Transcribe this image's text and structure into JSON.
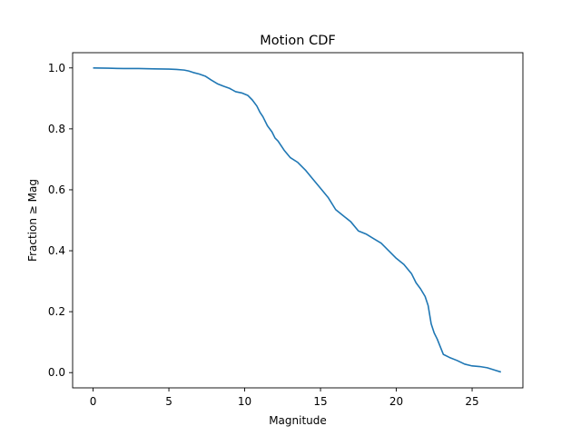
{
  "chart_data": {
    "type": "line",
    "title": "Motion CDF",
    "xlabel": "Magnitude",
    "ylabel": "Fraction ≥ Mag",
    "xlim": [
      -1.35,
      28.35
    ],
    "ylim": [
      -0.05,
      1.05
    ],
    "xticks": [
      0,
      5,
      10,
      15,
      20,
      25
    ],
    "yticks": [
      0.0,
      0.2,
      0.4,
      0.6,
      0.8,
      1.0
    ],
    "xtick_labels": [
      "0",
      "5",
      "10",
      "15",
      "20",
      "25"
    ],
    "ytick_labels": [
      "0.0",
      "0.2",
      "0.4",
      "0.6",
      "0.8",
      "1.0"
    ],
    "grid": false,
    "legend": "none",
    "series": [
      {
        "color": "#1f77b4",
        "x": [
          0,
          1,
          2,
          3,
          4,
          5,
          5.5,
          6,
          6.3,
          6.6,
          7.0,
          7.4,
          7.8,
          8.2,
          8.6,
          9.0,
          9.4,
          9.8,
          10.2,
          10.5,
          10.8,
          11.0,
          11.2,
          11.5,
          11.8,
          12.0,
          12.2,
          12.6,
          13.0,
          13.5,
          14.0,
          14.5,
          15.0,
          15.5,
          16.0,
          16.5,
          17.0,
          17.5,
          18.0,
          18.5,
          19.0,
          19.5,
          20.0,
          20.5,
          21.0,
          21.3,
          21.6,
          21.9,
          22.1,
          22.3,
          22.5,
          22.7,
          22.9,
          23.1,
          23.5,
          24.0,
          24.5,
          25.0,
          25.5,
          26.0,
          26.5,
          26.9
        ],
        "y": [
          1.0,
          0.999,
          0.998,
          0.998,
          0.997,
          0.996,
          0.995,
          0.993,
          0.99,
          0.985,
          0.98,
          0.973,
          0.96,
          0.948,
          0.94,
          0.933,
          0.922,
          0.918,
          0.91,
          0.895,
          0.875,
          0.855,
          0.84,
          0.81,
          0.79,
          0.77,
          0.76,
          0.73,
          0.706,
          0.69,
          0.665,
          0.635,
          0.605,
          0.575,
          0.535,
          0.515,
          0.495,
          0.465,
          0.455,
          0.44,
          0.425,
          0.4,
          0.375,
          0.355,
          0.325,
          0.295,
          0.275,
          0.25,
          0.22,
          0.16,
          0.13,
          0.11,
          0.085,
          0.06,
          0.05,
          0.04,
          0.028,
          0.022,
          0.02,
          0.016,
          0.008,
          0.002
        ]
      }
    ]
  }
}
